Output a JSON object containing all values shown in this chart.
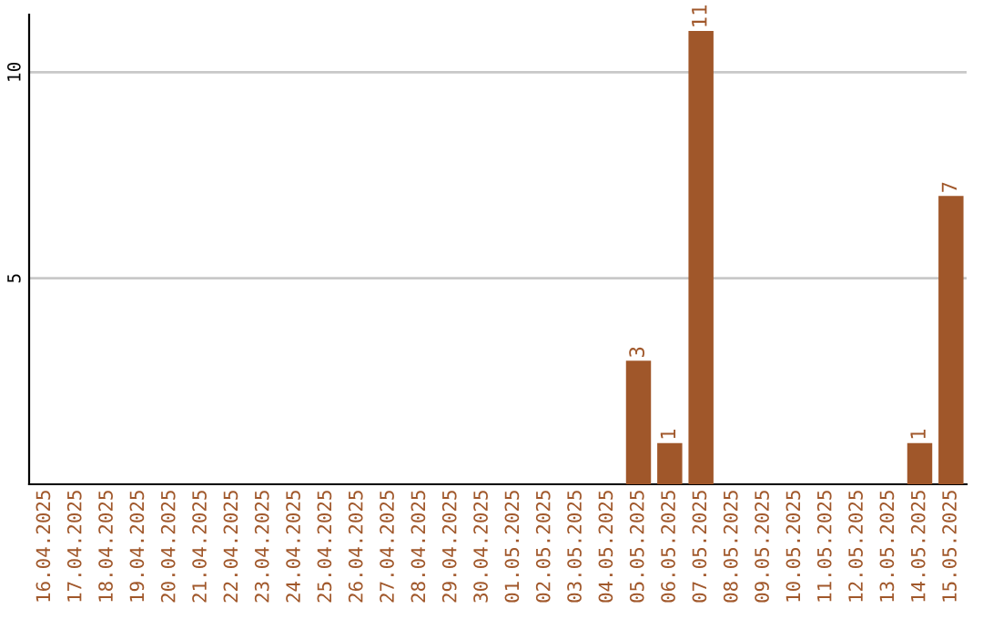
{
  "chart_data": {
    "type": "bar",
    "categories": [
      "16.04.2025",
      "17.04.2025",
      "18.04.2025",
      "19.04.2025",
      "20.04.2025",
      "21.04.2025",
      "22.04.2025",
      "23.04.2025",
      "24.04.2025",
      "25.04.2025",
      "26.04.2025",
      "27.04.2025",
      "28.04.2025",
      "29.04.2025",
      "30.04.2025",
      "01.05.2025",
      "02.05.2025",
      "03.05.2025",
      "04.05.2025",
      "05.05.2025",
      "06.05.2025",
      "07.05.2025",
      "08.05.2025",
      "09.05.2025",
      "10.05.2025",
      "11.05.2025",
      "12.05.2025",
      "13.05.2025",
      "14.05.2025",
      "15.05.2025"
    ],
    "values": [
      0,
      0,
      0,
      0,
      0,
      0,
      0,
      0,
      0,
      0,
      0,
      0,
      0,
      0,
      0,
      0,
      0,
      0,
      0,
      3,
      1,
      11,
      0,
      0,
      0,
      0,
      0,
      0,
      1,
      7
    ],
    "value_labels": [
      null,
      null,
      null,
      null,
      null,
      null,
      null,
      null,
      null,
      null,
      null,
      null,
      null,
      null,
      null,
      null,
      null,
      null,
      null,
      "3",
      "1",
      "11",
      null,
      null,
      null,
      null,
      null,
      null,
      "1",
      "7"
    ],
    "color": "#a0572a",
    "ylim": [
      0,
      11.4
    ],
    "yticks": [
      5,
      10
    ],
    "grid": "y"
  }
}
